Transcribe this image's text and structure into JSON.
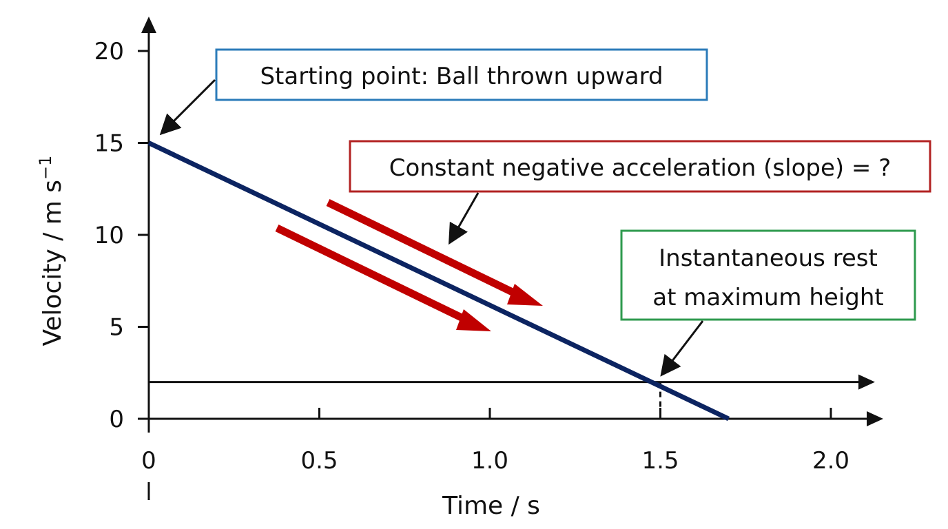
{
  "chart_data": {
    "type": "line",
    "title": "",
    "xlabel": "Time / s",
    "ylabel_main": "Velocity / m s",
    "ylabel_superscript": "−1",
    "xlim": [
      0,
      2.1
    ],
    "ylim": [
      0,
      20
    ],
    "x_ticks": [
      0,
      0.5,
      1.0,
      1.5,
      2.0
    ],
    "x_tick_labels": [
      "0",
      "0.5",
      "1.0",
      "1.5",
      "2.0"
    ],
    "y_ticks": [
      0,
      5,
      10,
      15,
      20
    ],
    "y_tick_labels": [
      "0",
      "5",
      "10",
      "15",
      "20"
    ],
    "grid": false,
    "series": [
      {
        "color": "#0c2461",
        "x": [
          0,
          1.7
        ],
        "y": [
          15,
          0
        ]
      }
    ],
    "reference_line_y": 2,
    "marker_x": 1.5,
    "annotations": [
      {
        "id": "start",
        "text": "Starting point: Ball thrown upward",
        "border_color": "#2b7bb9"
      },
      {
        "id": "slope",
        "text": "Constant negative acceleration (slope) = ?",
        "border_color": "#b22222"
      },
      {
        "id": "rest",
        "lines": [
          "Instantaneous rest",
          "at maximum height"
        ],
        "border_color": "#2e9a4e"
      }
    ],
    "accent_arrow_color": "#c00000",
    "axis_color": "#111111"
  }
}
